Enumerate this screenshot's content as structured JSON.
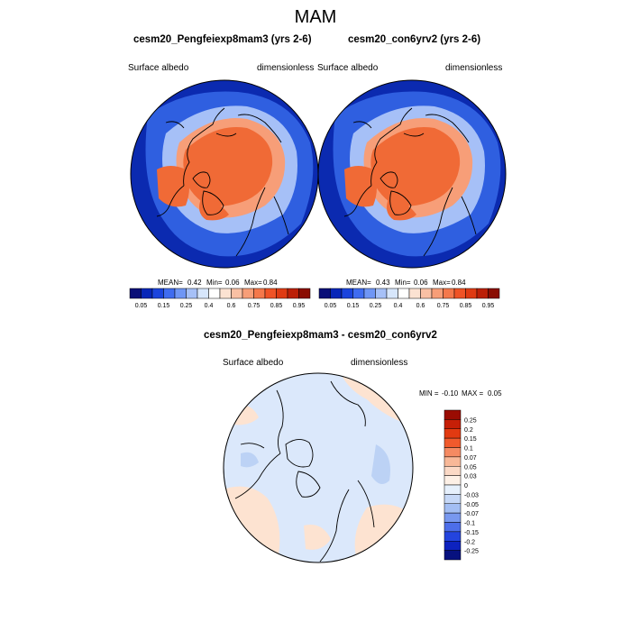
{
  "figure": {
    "title": "MAM"
  },
  "panels": [
    {
      "title": "cesm20_Pengfeiexp8mam3 (yrs 2-6)",
      "left_label": "Surface albedo",
      "right_label": "dimensionless",
      "stats": {
        "mean_label": "MEAN=",
        "mean": "0.42",
        "min_label": "Min=",
        "min": "0.06",
        "max_label": "Max=",
        "max": "0.84"
      }
    },
    {
      "title": "cesm20_con6yrv2 (yrs 2-6)",
      "left_label": "Surface albedo",
      "right_label": "dimensionless",
      "stats": {
        "mean_label": "MEAN=",
        "mean": "0.43",
        "min_label": "Min=",
        "min": "0.06",
        "max_label": "Max=",
        "max": "0.84"
      }
    }
  ],
  "colorbar_top": {
    "labels": [
      "0.05",
      "0.15",
      "0.25",
      "0.4",
      "0.6",
      "0.75",
      "0.85",
      "0.95"
    ],
    "colors": [
      "#0a0f78",
      "#0726b8",
      "#1b44dd",
      "#3f6cf0",
      "#6f96f5",
      "#a6c0f7",
      "#d7e6fb",
      "#ffffff",
      "#fbe2d2",
      "#f9c0a4",
      "#f79e78",
      "#f4784b",
      "#ef5326",
      "#df3a12",
      "#bb1f06",
      "#8a0d02"
    ]
  },
  "diff_panel": {
    "title": "cesm20_Pengfeiexp8mam3 - cesm20_con6yrv2",
    "left_label": "Surface albedo",
    "right_label": "dimensionless",
    "minmax": {
      "min_label": "MIN =",
      "min": "-0.10",
      "max_label": "MAX =",
      "max": "0.05"
    }
  },
  "colorbar_diff": {
    "labels": [
      "0.25",
      "0.2",
      "0.15",
      "0.1",
      "0.07",
      "0.05",
      "0.03",
      "0",
      "-0.03",
      "-0.05",
      "-0.07",
      "-0.1",
      "-0.15",
      "-0.2",
      "-0.25"
    ],
    "colors": [
      "#9a0c02",
      "#c61f07",
      "#e23a11",
      "#f15a2c",
      "#f58a62",
      "#f8b898",
      "#fbd9c6",
      "#fdf0e6",
      "#e6f0fc",
      "#c6d8f7",
      "#a3bef3",
      "#7898ef",
      "#4d6ee9",
      "#2444de",
      "#0d22bf",
      "#07117f"
    ]
  },
  "map_colors": {
    "ocean_deep": "#0b2ab0",
    "ocean_mid": "#2f5fe0",
    "seaice_low": "#a6c0f7",
    "seaice_mid": "#f79e78",
    "seaice_high": "#f06a36",
    "diff_base": "#dbe8fb",
    "diff_pos": "#fde3d1",
    "diff_neg": "#bcd2f5"
  }
}
